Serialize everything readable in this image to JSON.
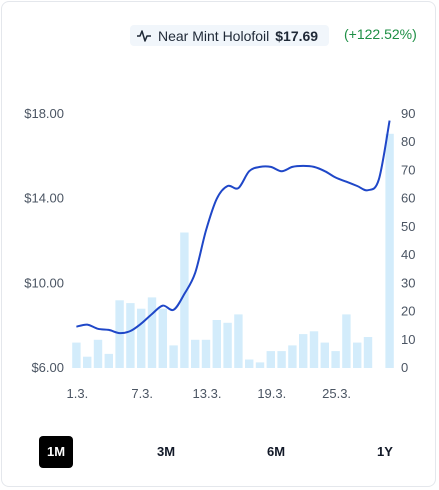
{
  "header": {
    "series_label": "Near Mint Holofoil",
    "current_price": "$17.69",
    "change": "(+122.52%)"
  },
  "ranges": [
    {
      "label": "1M",
      "active": true
    },
    {
      "label": "3M",
      "active": false
    },
    {
      "label": "6M",
      "active": false
    },
    {
      "label": "1Y",
      "active": false
    }
  ],
  "colors": {
    "line": "#1f47c8",
    "bars": "#d3ecfb",
    "change_positive": "#1e8f45"
  },
  "chart_data": {
    "type": "line+bar",
    "x_tick_labels": [
      "1.3.",
      "7.3.",
      "13.3.",
      "19.3.",
      "25.3."
    ],
    "y_left": {
      "ylim": [
        6,
        18
      ],
      "ticks": [
        "$6.00",
        "$10.00",
        "$14.00",
        "$18.00"
      ]
    },
    "y_right": {
      "ylim": [
        0,
        90
      ],
      "ticks": [
        "0",
        "10",
        "20",
        "30",
        "40",
        "50",
        "60",
        "70",
        "80",
        "90"
      ]
    },
    "series": [
      {
        "name": "Near Mint Holofoil",
        "kind": "line",
        "axis": "left",
        "values": [
          7.95,
          8.05,
          7.85,
          7.8,
          7.65,
          7.75,
          8.1,
          8.55,
          8.95,
          8.75,
          9.5,
          10.5,
          12.5,
          14.0,
          14.6,
          14.5,
          15.3,
          15.5,
          15.5,
          15.3,
          15.5,
          15.55,
          15.5,
          15.3,
          15.0,
          14.8,
          14.6,
          14.4,
          14.9,
          17.69
        ],
        "x": [
          1,
          2,
          3,
          4,
          5,
          6,
          7,
          8,
          9,
          10,
          11,
          12,
          13,
          14,
          15,
          16,
          17,
          18,
          19,
          20,
          21,
          22,
          23,
          24,
          25,
          26,
          27,
          28,
          29,
          30
        ]
      },
      {
        "kind": "bar",
        "axis": "right",
        "values": [
          9,
          4,
          10,
          5,
          24,
          23,
          21,
          25,
          21,
          8,
          48,
          10,
          10,
          17,
          16,
          19,
          3,
          2,
          6,
          6,
          8,
          12,
          13,
          9,
          6,
          19,
          9,
          11,
          83
        ],
        "x": [
          1,
          2,
          3,
          4,
          5,
          6,
          7,
          8,
          9,
          10,
          11,
          12,
          13,
          14,
          15,
          16,
          17,
          18,
          19,
          20,
          21,
          22,
          23,
          24,
          25,
          26,
          27,
          28,
          30
        ]
      }
    ],
    "grid": false
  }
}
